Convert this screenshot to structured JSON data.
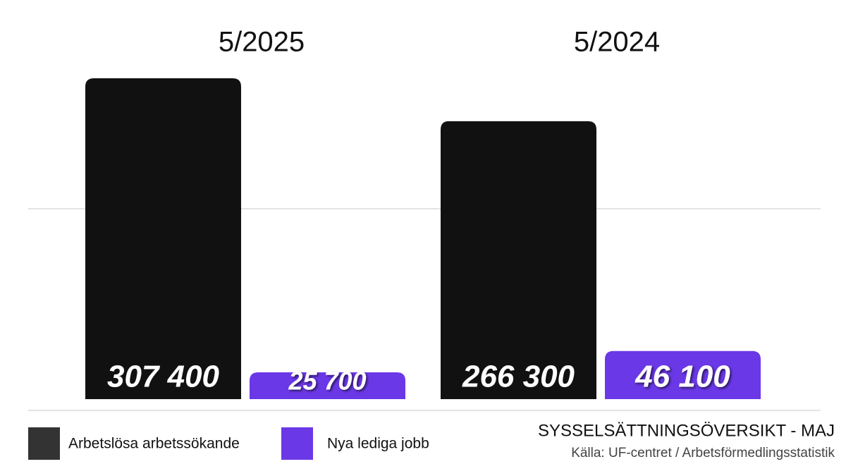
{
  "chart_data": {
    "type": "bar",
    "title": "SYSSELSÄTTNINGSÖVERSIKT - MAJ",
    "subtitle": "Källa: UF-centret / Arbetsförmedlingsstatistik",
    "categories": [
      "5/2025",
      "5/2024"
    ],
    "series": [
      {
        "name": "Arbetslösa arbetssökande",
        "color": "#111111",
        "values": [
          307400,
          266300
        ],
        "value_labels": [
          "307 400",
          "266 300"
        ]
      },
      {
        "name": "Nya lediga jobb",
        "color": "#6a38e6",
        "values": [
          25700,
          46100
        ],
        "value_labels": [
          "25 700",
          "46 100"
        ]
      }
    ],
    "ylim": [
      0,
      350000
    ]
  }
}
